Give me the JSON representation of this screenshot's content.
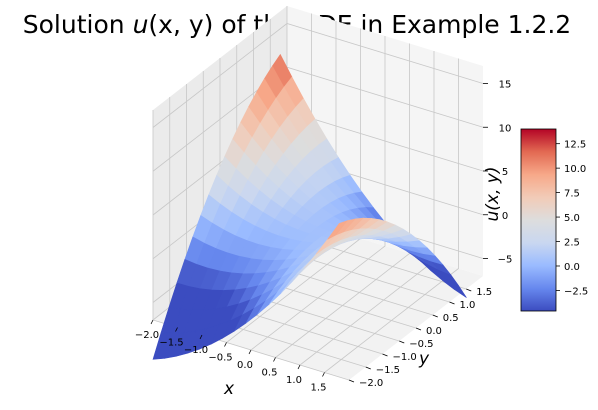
{
  "chart_data": {
    "type": "surface",
    "title": "Solution u(x, y) of the PDE in Example 1.2.2",
    "title_parts": {
      "pre": "Solution ",
      "func": "u",
      "args": "(x, y)",
      "post": " of the PDE in Example 1.2.2"
    },
    "xlabel": "x",
    "ylabel": "y",
    "zlabel": "u(x, y)",
    "colormap": "coolwarm",
    "colormap_stops": [
      "#3b4cc0",
      "#6788ee",
      "#9abbff",
      "#c9d7f0",
      "#dddddd",
      "#f2cbb7",
      "#f7a889",
      "#e26952",
      "#b40426"
    ],
    "x_range": [
      -2,
      2
    ],
    "y_range": [
      -2,
      2
    ],
    "zlim": [
      -7,
      17
    ],
    "x_ticks": [
      {
        "value": -2.0,
        "label": "−2.0"
      },
      {
        "value": -1.5,
        "label": "−1.5"
      },
      {
        "value": -1.0,
        "label": "−1.0"
      },
      {
        "value": -0.5,
        "label": "−0.5"
      },
      {
        "value": 0.0,
        "label": "0.0"
      },
      {
        "value": 0.5,
        "label": "0.5"
      },
      {
        "value": 1.0,
        "label": "1.0"
      },
      {
        "value": 1.5,
        "label": "1.5"
      }
    ],
    "y_ticks": [
      {
        "value": -2.0,
        "label": "−2.0"
      },
      {
        "value": -1.5,
        "label": "−1.5"
      },
      {
        "value": -1.0,
        "label": "−1.0"
      },
      {
        "value": -0.5,
        "label": "−0.5"
      },
      {
        "value": 0.0,
        "label": "0.0"
      },
      {
        "value": 0.5,
        "label": "0.5"
      },
      {
        "value": 1.0,
        "label": "1.0"
      },
      {
        "value": 1.5,
        "label": "1.5"
      }
    ],
    "z_ticks": [
      {
        "value": -5,
        "label": "−5"
      },
      {
        "value": 0,
        "label": "0"
      },
      {
        "value": 5,
        "label": "5"
      },
      {
        "value": 10,
        "label": "10"
      },
      {
        "value": 15,
        "label": "15"
      }
    ],
    "colorbar": {
      "vmin": -4.6,
      "vmax": 14.0,
      "ticks": [
        {
          "value": -2.5,
          "label": "−2.5"
        },
        {
          "value": 0.0,
          "label": "0.0"
        },
        {
          "value": 2.5,
          "label": "2.5"
        },
        {
          "value": 5.0,
          "label": "5.0"
        },
        {
          "value": 7.5,
          "label": "7.5"
        },
        {
          "value": 10.0,
          "label": "10.0"
        },
        {
          "value": 12.5,
          "label": "12.5"
        }
      ]
    },
    "grid": true,
    "surface_samples": [
      {
        "x": -2.0,
        "y": -2.0,
        "u": 0.0
      },
      {
        "x": -2.0,
        "y": 1.8,
        "u": 14.0
      },
      {
        "x": 1.8,
        "y": 1.8,
        "u": -4.6
      },
      {
        "x": 1.8,
        "y": -2.0,
        "u": 0.0
      },
      {
        "x": 0.0,
        "y": 0.0,
        "u": 0.5
      }
    ]
  }
}
